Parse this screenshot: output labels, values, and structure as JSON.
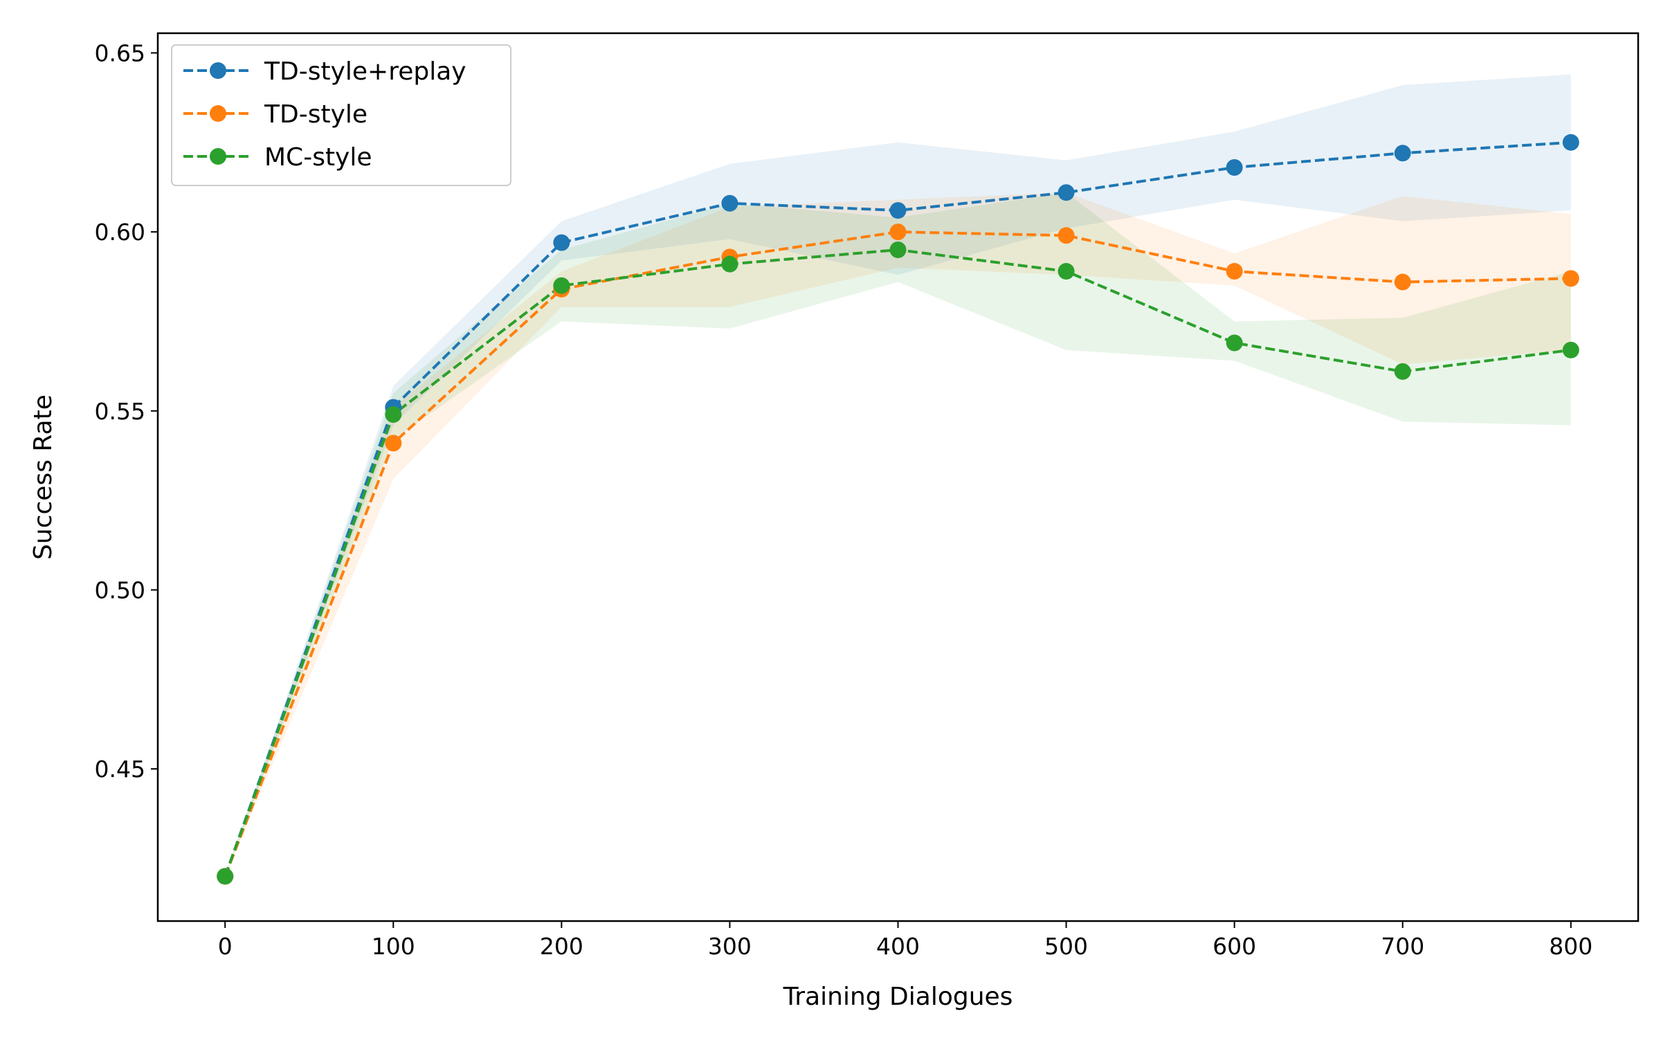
{
  "chart_data": {
    "type": "line",
    "title": "",
    "xlabel": "Training Dialogues",
    "ylabel": "Success Rate",
    "xlim": [
      -40,
      840
    ],
    "ylim": [
      0.4075,
      0.6555
    ],
    "xticks": [
      0,
      100,
      200,
      300,
      400,
      500,
      600,
      700,
      800
    ],
    "xtick_labels": [
      "0",
      "100",
      "200",
      "300",
      "400",
      "500",
      "600",
      "700",
      "800"
    ],
    "yticks": [
      0.45,
      0.5,
      0.55,
      0.6,
      0.65
    ],
    "ytick_labels": [
      "0.45",
      "0.50",
      "0.55",
      "0.60",
      "0.65"
    ],
    "x": [
      0,
      100,
      200,
      300,
      400,
      500,
      600,
      700,
      800
    ],
    "legend_position": "top-left",
    "series": [
      {
        "name": "TD-style+replay",
        "color": "#1f77b4",
        "values": [
          0.42,
          0.551,
          0.597,
          0.608,
          0.606,
          0.611,
          0.618,
          0.622,
          0.625
        ],
        "lower": [
          0.42,
          0.546,
          0.592,
          0.598,
          0.588,
          0.601,
          0.609,
          0.603,
          0.606
        ],
        "upper": [
          0.42,
          0.557,
          0.603,
          0.619,
          0.625,
          0.62,
          0.628,
          0.641,
          0.644
        ]
      },
      {
        "name": "TD-style",
        "color": "#ff7f0e",
        "values": [
          0.42,
          0.541,
          0.584,
          0.593,
          0.6,
          0.599,
          0.589,
          0.586,
          0.587
        ],
        "lower": [
          0.42,
          0.531,
          0.579,
          0.579,
          0.59,
          0.588,
          0.585,
          0.563,
          0.567
        ],
        "upper": [
          0.42,
          0.551,
          0.589,
          0.607,
          0.609,
          0.611,
          0.594,
          0.61,
          0.605
        ]
      },
      {
        "name": "MC-style",
        "color": "#2ca02c",
        "values": [
          0.42,
          0.549,
          0.585,
          0.591,
          0.595,
          0.589,
          0.569,
          0.561,
          0.567
        ],
        "lower": [
          0.42,
          0.542,
          0.575,
          0.573,
          0.586,
          0.567,
          0.564,
          0.547,
          0.546
        ],
        "upper": [
          0.42,
          0.555,
          0.595,
          0.608,
          0.604,
          0.611,
          0.575,
          0.576,
          0.589
        ]
      }
    ]
  }
}
